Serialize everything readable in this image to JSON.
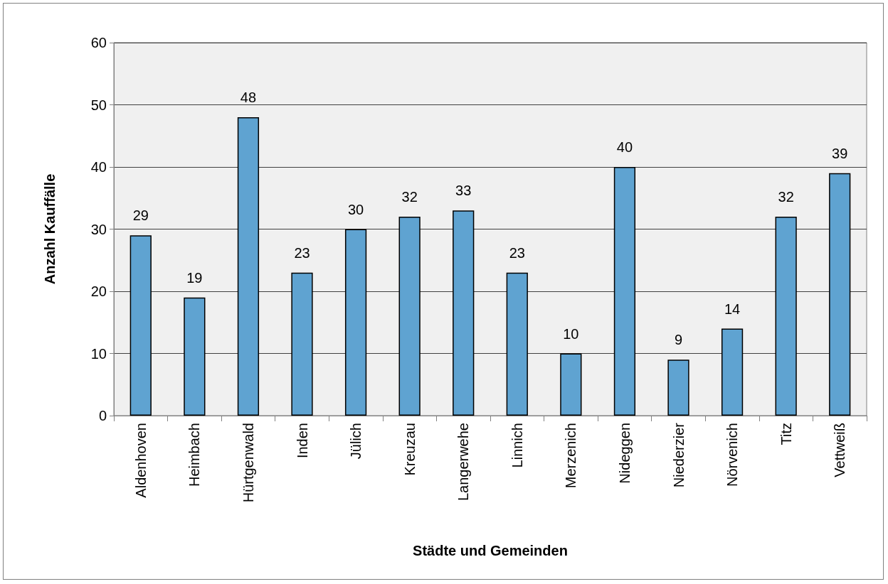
{
  "chart_data": {
    "type": "bar",
    "xlabel": "Städte und Gemeinden",
    "ylabel": "Anzahl Kauffälle",
    "categories": [
      "Aldenhoven",
      "Heimbach",
      "Hürtgenwald",
      "Inden",
      "Jülich",
      "Kreuzau",
      "Langerwehe",
      "Linnich",
      "Merzenich",
      "Nideggen",
      "Niederzier",
      "Nörvenich",
      "Titz",
      "Vettweiß"
    ],
    "values": [
      29,
      19,
      48,
      23,
      30,
      32,
      33,
      23,
      10,
      40,
      9,
      14,
      32,
      39
    ],
    "color": "#5fa3d1",
    "ylim": [
      0,
      60
    ],
    "yticks": [
      0,
      10,
      20,
      30,
      40,
      50,
      60
    ],
    "grid": "y",
    "data_labels": true
  }
}
